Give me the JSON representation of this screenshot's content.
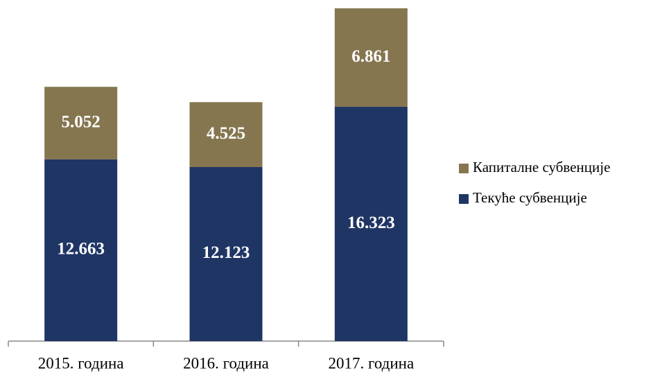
{
  "chart_data": {
    "type": "stacked_bar",
    "categories": [
      "2015. година",
      "2016. година",
      "2017. година"
    ],
    "series": [
      {
        "name": "Текуће субвенције",
        "color": "#1f3564",
        "values": [
          12.663,
          12.123,
          16.323
        ]
      },
      {
        "name": "Капиталне субвенције",
        "color": "#857650",
        "values": [
          5.052,
          4.525,
          6.861
        ]
      }
    ],
    "legend": "right"
  }
}
